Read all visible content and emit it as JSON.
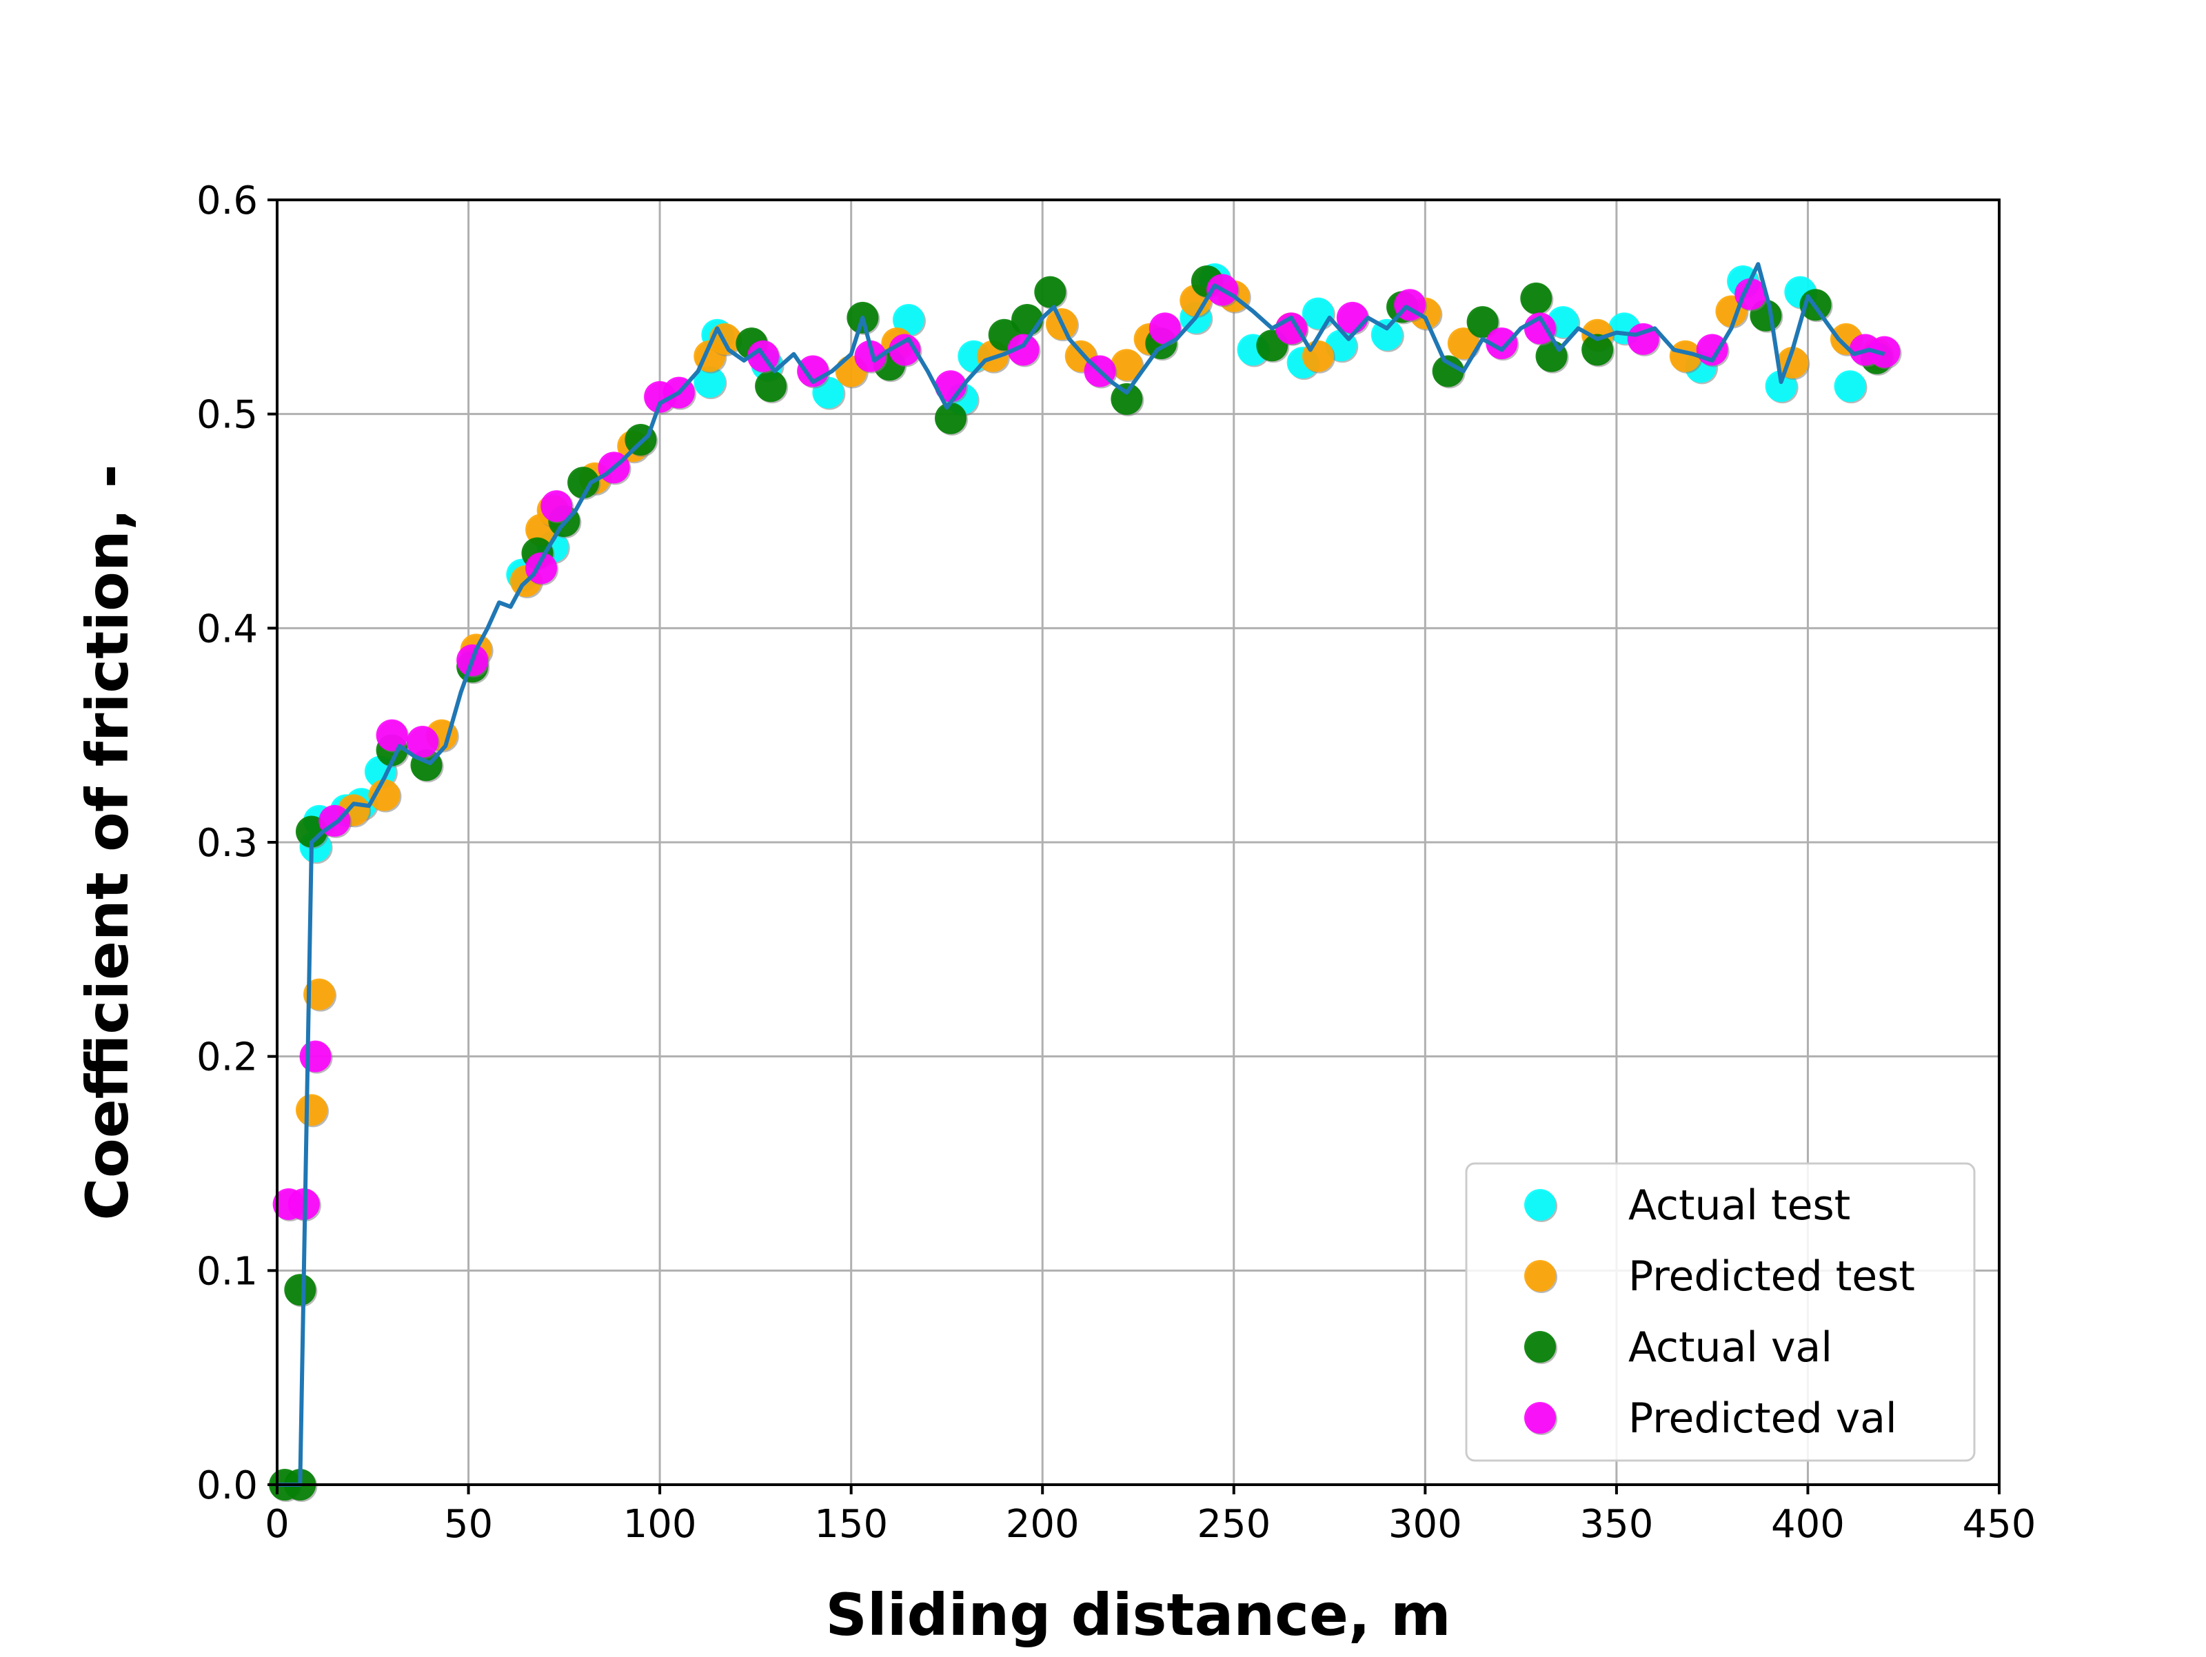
{
  "chart_data": {
    "type": "scatter",
    "title": "",
    "xlabel": "Sliding distance, m",
    "ylabel": "Coefficient of friction, -",
    "xlim": [
      0,
      450
    ],
    "ylim": [
      0,
      0.6
    ],
    "x_ticks": [
      0,
      50,
      100,
      150,
      200,
      250,
      300,
      350,
      400,
      450
    ],
    "y_ticks": [
      0.0,
      0.1,
      0.2,
      0.3,
      0.4,
      0.5,
      0.6
    ],
    "x_tick_labels": [
      "0",
      "50",
      "100",
      "150",
      "200",
      "250",
      "300",
      "350",
      "400",
      "450"
    ],
    "y_tick_labels": [
      "0.0",
      "0.1",
      "0.2",
      "0.3",
      "0.4",
      "0.5",
      "0.6"
    ],
    "grid": true,
    "legend_position": "lower-right",
    "series": [
      {
        "name": "Actual test",
        "kind": "scatter",
        "color": "#00ffff",
        "points": [
          [
            10,
            0.298
          ],
          [
            11,
            0.31
          ],
          [
            18,
            0.315
          ],
          [
            22,
            0.318
          ],
          [
            27,
            0.333
          ],
          [
            64,
            0.425
          ],
          [
            72,
            0.438
          ],
          [
            113,
            0.515
          ],
          [
            115,
            0.537
          ],
          [
            128,
            0.523
          ],
          [
            144,
            0.51
          ],
          [
            165,
            0.544
          ],
          [
            179,
            0.507
          ],
          [
            182,
            0.527
          ],
          [
            240,
            0.545
          ],
          [
            245,
            0.563
          ],
          [
            255,
            0.53
          ],
          [
            268,
            0.524
          ],
          [
            272,
            0.547
          ],
          [
            278,
            0.532
          ],
          [
            290,
            0.537
          ],
          [
            336,
            0.543
          ],
          [
            352,
            0.54
          ],
          [
            372,
            0.522
          ],
          [
            383,
            0.562
          ],
          [
            393,
            0.513
          ],
          [
            398,
            0.557
          ],
          [
            411,
            0.513
          ]
        ]
      },
      {
        "name": "Predicted test",
        "kind": "scatter",
        "color": "#ffa500",
        "points": [
          [
            9,
            0.175
          ],
          [
            11,
            0.229
          ],
          [
            20,
            0.315
          ],
          [
            28,
            0.322
          ],
          [
            43,
            0.35
          ],
          [
            52,
            0.39
          ],
          [
            65,
            0.422
          ],
          [
            69,
            0.446
          ],
          [
            72,
            0.455
          ],
          [
            83,
            0.47
          ],
          [
            93,
            0.485
          ],
          [
            113,
            0.527
          ],
          [
            117,
            0.535
          ],
          [
            150,
            0.52
          ],
          [
            162,
            0.533
          ],
          [
            187,
            0.527
          ],
          [
            205,
            0.542
          ],
          [
            210,
            0.527
          ],
          [
            222,
            0.523
          ],
          [
            228,
            0.535
          ],
          [
            240,
            0.553
          ],
          [
            250,
            0.555
          ],
          [
            265,
            0.54
          ],
          [
            272,
            0.527
          ],
          [
            300,
            0.547
          ],
          [
            310,
            0.533
          ],
          [
            345,
            0.537
          ],
          [
            368,
            0.527
          ],
          [
            380,
            0.548
          ],
          [
            396,
            0.524
          ],
          [
            410,
            0.535
          ],
          [
            418,
            0.528
          ]
        ]
      },
      {
        "name": "Actual val",
        "kind": "scatter",
        "color": "#008000",
        "points": [
          [
            2,
            0.0
          ],
          [
            6,
            0.0
          ],
          [
            6,
            0.091
          ],
          [
            9,
            0.305
          ],
          [
            30,
            0.343
          ],
          [
            39,
            0.336
          ],
          [
            51,
            0.382
          ],
          [
            68,
            0.435
          ],
          [
            75,
            0.45
          ],
          [
            80,
            0.468
          ],
          [
            95,
            0.488
          ],
          [
            124,
            0.533
          ],
          [
            129,
            0.513
          ],
          [
            153,
            0.545
          ],
          [
            160,
            0.523
          ],
          [
            176,
            0.498
          ],
          [
            190,
            0.537
          ],
          [
            196,
            0.544
          ],
          [
            202,
            0.557
          ],
          [
            222,
            0.507
          ],
          [
            231,
            0.533
          ],
          [
            243,
            0.562
          ],
          [
            260,
            0.532
          ],
          [
            294,
            0.55
          ],
          [
            306,
            0.52
          ],
          [
            315,
            0.543
          ],
          [
            329,
            0.554
          ],
          [
            333,
            0.527
          ],
          [
            345,
            0.53
          ],
          [
            389,
            0.546
          ],
          [
            402,
            0.551
          ],
          [
            418,
            0.526
          ]
        ]
      },
      {
        "name": "Predicted val",
        "kind": "scatter",
        "color": "#ff00ff",
        "points": [
          [
            3,
            0.131
          ],
          [
            7,
            0.131
          ],
          [
            10,
            0.2
          ],
          [
            15,
            0.31
          ],
          [
            30,
            0.35
          ],
          [
            38,
            0.347
          ],
          [
            51,
            0.385
          ],
          [
            69,
            0.428
          ],
          [
            73,
            0.457
          ],
          [
            88,
            0.475
          ],
          [
            100,
            0.508
          ],
          [
            105,
            0.51
          ],
          [
            127,
            0.527
          ],
          [
            140,
            0.52
          ],
          [
            155,
            0.527
          ],
          [
            164,
            0.53
          ],
          [
            176,
            0.513
          ],
          [
            195,
            0.53
          ],
          [
            215,
            0.52
          ],
          [
            232,
            0.54
          ],
          [
            247,
            0.558
          ],
          [
            265,
            0.54
          ],
          [
            281,
            0.545
          ],
          [
            296,
            0.551
          ],
          [
            320,
            0.533
          ],
          [
            330,
            0.54
          ],
          [
            357,
            0.535
          ],
          [
            375,
            0.53
          ],
          [
            385,
            0.556
          ],
          [
            415,
            0.53
          ],
          [
            420,
            0.529
          ]
        ]
      },
      {
        "kind": "line",
        "color": "#1f77b4",
        "points": [
          [
            0,
            0.0
          ],
          [
            5,
            0.0
          ],
          [
            6,
            0.0
          ],
          [
            8,
            0.2
          ],
          [
            9,
            0.3
          ],
          [
            12,
            0.305
          ],
          [
            16,
            0.31
          ],
          [
            20,
            0.318
          ],
          [
            24,
            0.317
          ],
          [
            28,
            0.33
          ],
          [
            32,
            0.345
          ],
          [
            36,
            0.34
          ],
          [
            40,
            0.337
          ],
          [
            44,
            0.345
          ],
          [
            48,
            0.37
          ],
          [
            52,
            0.39
          ],
          [
            55,
            0.4
          ],
          [
            58,
            0.412
          ],
          [
            61,
            0.41
          ],
          [
            64,
            0.42
          ],
          [
            67,
            0.425
          ],
          [
            70,
            0.435
          ],
          [
            74,
            0.447
          ],
          [
            78,
            0.455
          ],
          [
            82,
            0.468
          ],
          [
            86,
            0.472
          ],
          [
            90,
            0.478
          ],
          [
            94,
            0.485
          ],
          [
            97,
            0.49
          ],
          [
            100,
            0.505
          ],
          [
            105,
            0.51
          ],
          [
            110,
            0.52
          ],
          [
            115,
            0.54
          ],
          [
            118,
            0.53
          ],
          [
            122,
            0.525
          ],
          [
            126,
            0.53
          ],
          [
            130,
            0.52
          ],
          [
            135,
            0.528
          ],
          [
            140,
            0.515
          ],
          [
            145,
            0.52
          ],
          [
            150,
            0.528
          ],
          [
            153,
            0.545
          ],
          [
            156,
            0.525
          ],
          [
            160,
            0.53
          ],
          [
            165,
            0.535
          ],
          [
            170,
            0.52
          ],
          [
            175,
            0.503
          ],
          [
            180,
            0.515
          ],
          [
            185,
            0.525
          ],
          [
            190,
            0.528
          ],
          [
            195,
            0.532
          ],
          [
            200,
            0.545
          ],
          [
            203,
            0.55
          ],
          [
            207,
            0.535
          ],
          [
            212,
            0.525
          ],
          [
            218,
            0.515
          ],
          [
            222,
            0.51
          ],
          [
            226,
            0.52
          ],
          [
            230,
            0.53
          ],
          [
            235,
            0.535
          ],
          [
            240,
            0.545
          ],
          [
            245,
            0.56
          ],
          [
            250,
            0.555
          ],
          [
            255,
            0.548
          ],
          [
            260,
            0.54
          ],
          [
            265,
            0.545
          ],
          [
            270,
            0.53
          ],
          [
            275,
            0.545
          ],
          [
            280,
            0.535
          ],
          [
            285,
            0.545
          ],
          [
            290,
            0.54
          ],
          [
            295,
            0.55
          ],
          [
            300,
            0.545
          ],
          [
            305,
            0.525
          ],
          [
            310,
            0.52
          ],
          [
            315,
            0.535
          ],
          [
            320,
            0.53
          ],
          [
            325,
            0.54
          ],
          [
            330,
            0.545
          ],
          [
            335,
            0.53
          ],
          [
            340,
            0.54
          ],
          [
            345,
            0.535
          ],
          [
            350,
            0.538
          ],
          [
            355,
            0.537
          ],
          [
            360,
            0.54
          ],
          [
            365,
            0.53
          ],
          [
            370,
            0.528
          ],
          [
            375,
            0.525
          ],
          [
            380,
            0.54
          ],
          [
            383,
            0.555
          ],
          [
            387,
            0.57
          ],
          [
            390,
            0.55
          ],
          [
            393,
            0.515
          ],
          [
            396,
            0.53
          ],
          [
            400,
            0.555
          ],
          [
            404,
            0.545
          ],
          [
            408,
            0.535
          ],
          [
            412,
            0.528
          ],
          [
            416,
            0.53
          ],
          [
            420,
            0.528
          ]
        ]
      }
    ]
  }
}
